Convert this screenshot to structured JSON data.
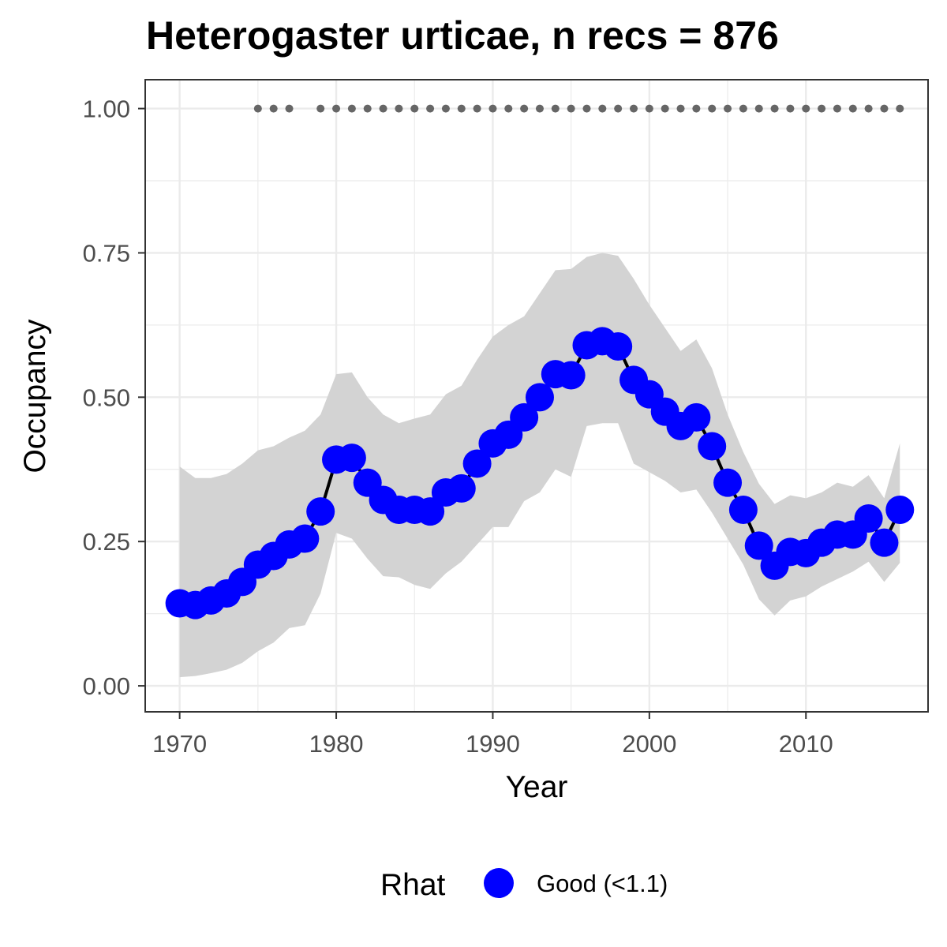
{
  "chart_data": {
    "type": "line",
    "title": "Heterogaster urticae, n recs = 876",
    "xlabel": "Year",
    "ylabel": "Occupancy",
    "xlim": [
      1967.8,
      2017.8
    ],
    "ylim": [
      -0.045,
      1.05
    ],
    "x_ticks": [
      1970,
      1980,
      1990,
      2000,
      2010
    ],
    "x_tick_labels": [
      "1970",
      "1980",
      "1990",
      "2000",
      "2010"
    ],
    "y_ticks": [
      0,
      0.25,
      0.5,
      0.75,
      1
    ],
    "y_tick_labels": [
      "0.00",
      "0.25",
      "0.50",
      "0.75",
      "1.00"
    ],
    "grid": true,
    "legend": {
      "position": "bottom",
      "title": "Rhat",
      "entries": [
        {
          "label": "Good (<1.1)",
          "color": "#0000ff"
        }
      ]
    },
    "colors": {
      "points": "#0000ff",
      "line": "#000000",
      "ribbon": "#d3d3d3",
      "record_dots": "#666666"
    },
    "series": [
      {
        "years": [
          1970,
          1971,
          1972,
          1973,
          1974,
          1975,
          1976,
          1977,
          1978,
          1979,
          1980,
          1981,
          1982,
          1983,
          1984,
          1985,
          1986,
          1987,
          1988,
          1989,
          1990,
          1991,
          1992,
          1993,
          1994,
          1995,
          1996,
          1997,
          1998,
          1999,
          2000,
          2001,
          2002,
          2003,
          2004,
          2005,
          2006,
          2007,
          2008,
          2009,
          2010,
          2011,
          2012,
          2013,
          2014,
          2015,
          2016
        ],
        "occupancy": [
          0.143,
          0.14,
          0.148,
          0.16,
          0.18,
          0.21,
          0.225,
          0.245,
          0.255,
          0.302,
          0.392,
          0.395,
          0.352,
          0.322,
          0.305,
          0.305,
          0.302,
          0.335,
          0.342,
          0.385,
          0.42,
          0.435,
          0.465,
          0.5,
          0.54,
          0.538,
          0.59,
          0.597,
          0.588,
          0.53,
          0.505,
          0.475,
          0.45,
          0.465,
          0.415,
          0.352,
          0.305,
          0.243,
          0.208,
          0.232,
          0.23,
          0.248,
          0.262,
          0.262,
          0.29,
          0.248,
          0.305
        ],
        "lower_ci": [
          0.015,
          0.017,
          0.022,
          0.028,
          0.04,
          0.06,
          0.075,
          0.1,
          0.105,
          0.16,
          0.265,
          0.255,
          0.22,
          0.19,
          0.188,
          0.175,
          0.168,
          0.195,
          0.215,
          0.245,
          0.275,
          0.275,
          0.32,
          0.335,
          0.375,
          0.362,
          0.45,
          0.455,
          0.455,
          0.385,
          0.37,
          0.355,
          0.335,
          0.34,
          0.3,
          0.255,
          0.21,
          0.15,
          0.122,
          0.148,
          0.155,
          0.172,
          0.185,
          0.198,
          0.215,
          0.18,
          0.213
        ],
        "upper_ci": [
          0.38,
          0.36,
          0.36,
          0.367,
          0.385,
          0.408,
          0.415,
          0.43,
          0.442,
          0.47,
          0.54,
          0.543,
          0.5,
          0.47,
          0.455,
          0.463,
          0.47,
          0.505,
          0.52,
          0.565,
          0.605,
          0.625,
          0.64,
          0.68,
          0.72,
          0.722,
          0.743,
          0.75,
          0.745,
          0.705,
          0.66,
          0.62,
          0.58,
          0.6,
          0.55,
          0.47,
          0.405,
          0.35,
          0.315,
          0.33,
          0.325,
          0.335,
          0.352,
          0.345,
          0.365,
          0.325,
          0.42
        ]
      }
    ],
    "record_years": {
      "y": 1.0,
      "years": [
        1975,
        1976,
        1977,
        1979,
        1980,
        1981,
        1982,
        1983,
        1984,
        1985,
        1986,
        1987,
        1988,
        1989,
        1990,
        1991,
        1992,
        1993,
        1994,
        1995,
        1996,
        1997,
        1998,
        1999,
        2000,
        2001,
        2002,
        2003,
        2004,
        2005,
        2006,
        2007,
        2008,
        2009,
        2010,
        2011,
        2012,
        2013,
        2014,
        2015,
        2016
      ]
    }
  }
}
